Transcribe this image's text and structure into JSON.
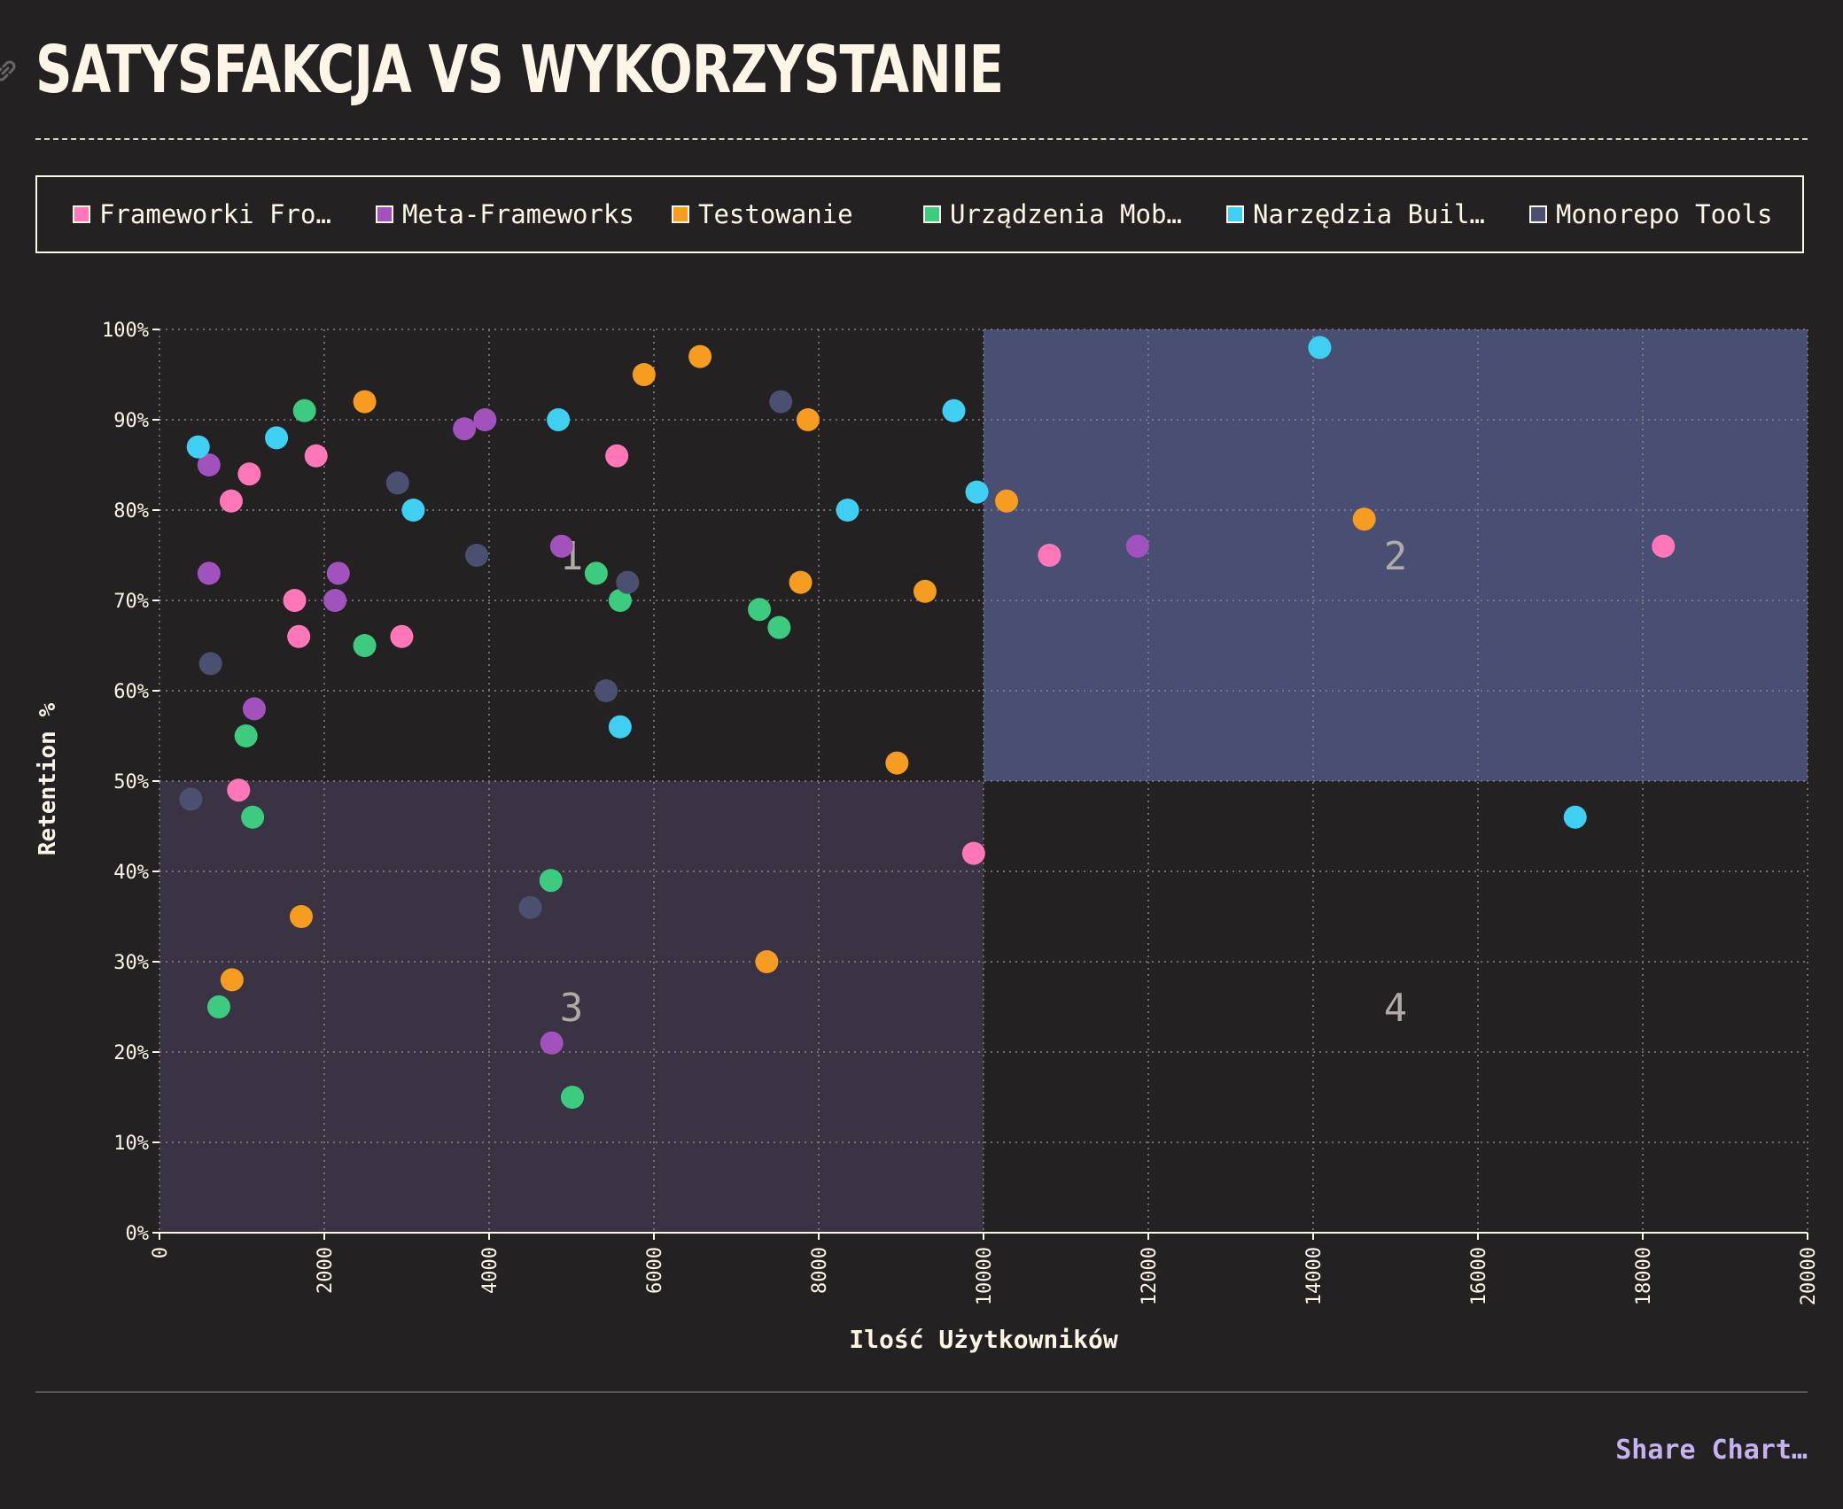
{
  "title": "SATYSFAKCJA VS WYKORZYSTANIE",
  "share_label": "Share Chart…",
  "legend": [
    {
      "label": "Frameworki Fro…",
      "color": "#ff77b7"
    },
    {
      "label": "Meta-Frameworks",
      "color": "#a152bd"
    },
    {
      "label": "Testowanie",
      "color": "#f59c21"
    },
    {
      "label": "Urządzenia Mob…",
      "color": "#3ccb7f"
    },
    {
      "label": "Narzędzia Buil…",
      "color": "#3ecff3"
    },
    {
      "label": "Monorepo Tools",
      "color": "#4c5070"
    }
  ],
  "chart_data": {
    "type": "scatter",
    "xlabel": "Ilość Użytkowników",
    "ylabel": "Retention %",
    "xlim": [
      0,
      20000
    ],
    "ylim": [
      0,
      100
    ],
    "x_ticks": [
      "0",
      "2000",
      "4000",
      "6000",
      "8000",
      "10000",
      "12000",
      "14000",
      "16000",
      "18000",
      "20000"
    ],
    "y_ticks": [
      "0%",
      "10%",
      "20%",
      "30%",
      "40%",
      "50%",
      "60%",
      "70%",
      "80%",
      "90%",
      "100%"
    ],
    "grid": true,
    "quadrants": [
      {
        "label": "1",
        "x": [
          0,
          10000
        ],
        "y": [
          50,
          100
        ],
        "fill": "none"
      },
      {
        "label": "2",
        "x": [
          10000,
          20000
        ],
        "y": [
          50,
          100
        ],
        "fill": "#484f72"
      },
      {
        "label": "3",
        "x": [
          0,
          10000
        ],
        "y": [
          0,
          50
        ],
        "fill": "#3a3344"
      },
      {
        "label": "4",
        "x": [
          10000,
          20000
        ],
        "y": [
          0,
          50
        ],
        "fill": "none"
      }
    ],
    "series": [
      {
        "name": "Frameworki Fro…",
        "color": "#ff77b7",
        "points": [
          [
            870,
            81
          ],
          [
            1090,
            84
          ],
          [
            1900,
            86
          ],
          [
            1640,
            70
          ],
          [
            1690,
            66
          ],
          [
            2940,
            66
          ],
          [
            5550,
            86
          ],
          [
            960,
            49
          ],
          [
            9880,
            42
          ],
          [
            10800,
            75
          ],
          [
            18250,
            76
          ]
        ]
      },
      {
        "name": "Meta-Frameworks",
        "color": "#a152bd",
        "points": [
          [
            600,
            85
          ],
          [
            600,
            73
          ],
          [
            1150,
            58
          ],
          [
            2130,
            70
          ],
          [
            2170,
            73
          ],
          [
            3700,
            89
          ],
          [
            3950,
            90
          ],
          [
            4880,
            76
          ],
          [
            4760,
            21
          ],
          [
            11870,
            76
          ]
        ]
      },
      {
        "name": "Testowanie",
        "color": "#f59c21",
        "points": [
          [
            2490,
            92
          ],
          [
            5880,
            95
          ],
          [
            6560,
            97
          ],
          [
            7870,
            90
          ],
          [
            7780,
            72
          ],
          [
            9290,
            71
          ],
          [
            10280,
            81
          ],
          [
            8950,
            52
          ],
          [
            7370,
            30
          ],
          [
            14620,
            79
          ],
          [
            1720,
            35
          ],
          [
            880,
            28
          ]
        ]
      },
      {
        "name": "Urządzenia Mob…",
        "color": "#3ccb7f",
        "points": [
          [
            1760,
            91
          ],
          [
            2490,
            65
          ],
          [
            1050,
            55
          ],
          [
            1130,
            46
          ],
          [
            720,
            25
          ],
          [
            5300,
            73
          ],
          [
            5590,
            70
          ],
          [
            7280,
            69
          ],
          [
            7520,
            67
          ],
          [
            4750,
            39
          ],
          [
            5010,
            15
          ]
        ]
      },
      {
        "name": "Narzędzia Buil…",
        "color": "#3ecff3",
        "points": [
          [
            470,
            87
          ],
          [
            1420,
            88
          ],
          [
            3080,
            80
          ],
          [
            4840,
            90
          ],
          [
            5590,
            56
          ],
          [
            8350,
            80
          ],
          [
            9640,
            91
          ],
          [
            9920,
            82
          ],
          [
            14080,
            98
          ],
          [
            17180,
            46
          ]
        ]
      },
      {
        "name": "Monorepo Tools",
        "color": "#4c5070",
        "points": [
          [
            620,
            63
          ],
          [
            380,
            48
          ],
          [
            2890,
            83
          ],
          [
            3850,
            75
          ],
          [
            5680,
            72
          ],
          [
            5420,
            60
          ],
          [
            7540,
            92
          ],
          [
            4500,
            36
          ]
        ]
      }
    ]
  }
}
